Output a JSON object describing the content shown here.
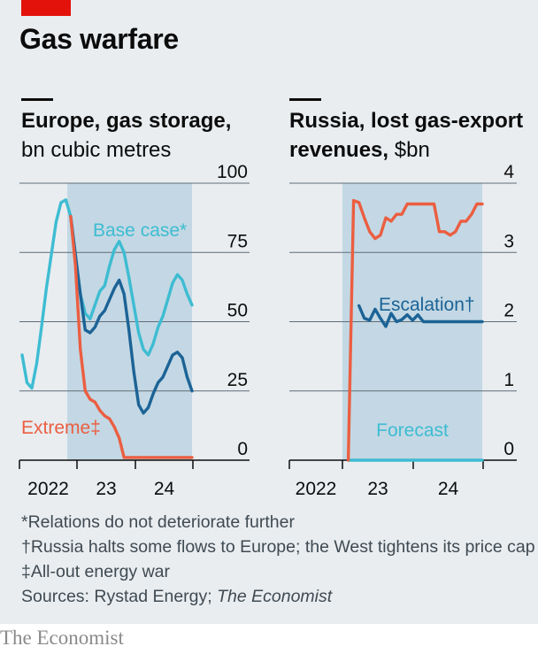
{
  "headline": "Gas warfare",
  "brand": "The Economist",
  "colors": {
    "background": "#e9edf0",
    "accent_red": "#e3120b",
    "forecast_shade": "#c3d8e4",
    "base_case": "#3ebcd2",
    "escalation": "#1c6396",
    "extreme": "#eb5e41",
    "forecast_line": "#3ebcd2"
  },
  "notes": {
    "base_case": "*Relations do not deteriorate further",
    "escalation": "†Russia halts some flows to Europe; the West tightens its price cap",
    "extreme": "‡All-out energy war",
    "sources_prefix": "Sources: Rystad Energy; ",
    "sources_italic": "The Economist"
  },
  "chart_data": [
    {
      "type": "line",
      "title": "Europe, gas storage,",
      "units": "bn cubic metres",
      "x_tick_labels": [
        "2022",
        "23",
        "24"
      ],
      "x_range": [
        "2022-01",
        "2024-12"
      ],
      "ylim": [
        0,
        100
      ],
      "y_ticks": [
        0,
        25,
        50,
        75,
        100
      ],
      "grid": true,
      "shaded_region": {
        "label": "",
        "from": "2022-11",
        "to": "2024-12"
      },
      "series": [
        {
          "name": "Base case*",
          "color": "#3ebcd2",
          "x": [
            "2022-01",
            "2022-02",
            "2022-03",
            "2022-04",
            "2022-05",
            "2022-06",
            "2022-07",
            "2022-08",
            "2022-09",
            "2022-10",
            "2022-11",
            "2022-12",
            "2023-01",
            "2023-02",
            "2023-03",
            "2023-04",
            "2023-05",
            "2023-06",
            "2023-07",
            "2023-08",
            "2023-09",
            "2023-10",
            "2023-11",
            "2023-12",
            "2024-01",
            "2024-02",
            "2024-03",
            "2024-04",
            "2024-05",
            "2024-06",
            "2024-07",
            "2024-08",
            "2024-09",
            "2024-10",
            "2024-11",
            "2024-12"
          ],
          "values": [
            38,
            28,
            26,
            35,
            48,
            62,
            74,
            86,
            93,
            94,
            88,
            74,
            60,
            53,
            51,
            56,
            61,
            63,
            70,
            76,
            79,
            75,
            66,
            56,
            46,
            40,
            38,
            42,
            48,
            52,
            58,
            64,
            67,
            65,
            60,
            56
          ]
        },
        {
          "name": "Escalation†",
          "color": "#1c6396",
          "x": [
            "2022-11",
            "2022-12",
            "2023-01",
            "2023-02",
            "2023-03",
            "2023-04",
            "2023-05",
            "2023-06",
            "2023-07",
            "2023-08",
            "2023-09",
            "2023-10",
            "2023-11",
            "2023-12",
            "2024-01",
            "2024-02",
            "2024-03",
            "2024-04",
            "2024-05",
            "2024-06",
            "2024-07",
            "2024-08",
            "2024-09",
            "2024-10",
            "2024-11",
            "2024-12"
          ],
          "values": [
            88,
            74,
            60,
            47,
            46,
            48,
            52,
            54,
            58,
            62,
            65,
            60,
            47,
            32,
            20,
            17,
            19,
            24,
            28,
            30,
            34,
            38,
            39,
            37,
            30,
            25
          ]
        },
        {
          "name": "Extreme‡",
          "color": "#eb5e41",
          "x": [
            "2022-11",
            "2022-12",
            "2023-01",
            "2023-02",
            "2023-03",
            "2023-04",
            "2023-05",
            "2023-06",
            "2023-07",
            "2023-08",
            "2023-09",
            "2023-10",
            "2023-11",
            "2023-12",
            "2024-01",
            "2024-02",
            "2024-03",
            "2024-04",
            "2024-05",
            "2024-06",
            "2024-07",
            "2024-08",
            "2024-09",
            "2024-10",
            "2024-11",
            "2024-12"
          ],
          "values": [
            88,
            70,
            40,
            25,
            22,
            21,
            18,
            16,
            15,
            12,
            8,
            1,
            1,
            1,
            1,
            1,
            1,
            1,
            1,
            1,
            1,
            1,
            1,
            1,
            1,
            1
          ]
        }
      ]
    },
    {
      "type": "line",
      "title": "Russia, lost gas-export",
      "title_line2": "revenues,",
      "units": "$bn",
      "x_tick_labels": [
        "2022",
        "23",
        "24"
      ],
      "x_range": [
        "2022-01",
        "2024-12"
      ],
      "ylim": [
        0,
        4
      ],
      "y_ticks": [
        0,
        1,
        2,
        3,
        4
      ],
      "grid": true,
      "shaded_region": {
        "label": "Forecast",
        "from": "2022-11",
        "to": "2024-12"
      },
      "series": [
        {
          "name": "Forecast",
          "color": "#3ebcd2",
          "x": [
            "2022-11",
            "2024-12"
          ],
          "values": [
            0,
            0
          ]
        },
        {
          "name": "Escalation†",
          "color": "#1c6396",
          "x": [
            "2023-01",
            "2023-02",
            "2023-03",
            "2023-04",
            "2023-05",
            "2023-06",
            "2023-07",
            "2023-08",
            "2023-09",
            "2023-10",
            "2023-11",
            "2023-12",
            "2024-01",
            "2024-12"
          ],
          "values": [
            2.23,
            2.05,
            2.02,
            2.18,
            2.05,
            1.93,
            2.12,
            2.0,
            2.03,
            2.1,
            2.02,
            2.1,
            2.0,
            2.0
          ]
        },
        {
          "name": "Extreme‡",
          "color": "#eb5e41",
          "x": [
            "2022-11",
            "2022-12",
            "2023-01",
            "2023-02",
            "2023-03",
            "2023-04",
            "2023-05",
            "2023-06",
            "2023-07",
            "2023-08",
            "2023-09",
            "2023-10",
            "2023-11",
            "2023-12",
            "2024-01",
            "2024-02",
            "2024-03",
            "2024-04",
            "2024-05",
            "2024-06",
            "2024-07",
            "2024-08",
            "2024-09",
            "2024-10",
            "2024-11",
            "2024-12"
          ],
          "values": [
            0,
            3.75,
            3.72,
            3.5,
            3.3,
            3.2,
            3.25,
            3.5,
            3.45,
            3.55,
            3.55,
            3.7,
            3.7,
            3.7,
            3.7,
            3.7,
            3.7,
            3.3,
            3.3,
            3.25,
            3.3,
            3.45,
            3.45,
            3.55,
            3.7,
            3.7
          ]
        }
      ]
    }
  ]
}
